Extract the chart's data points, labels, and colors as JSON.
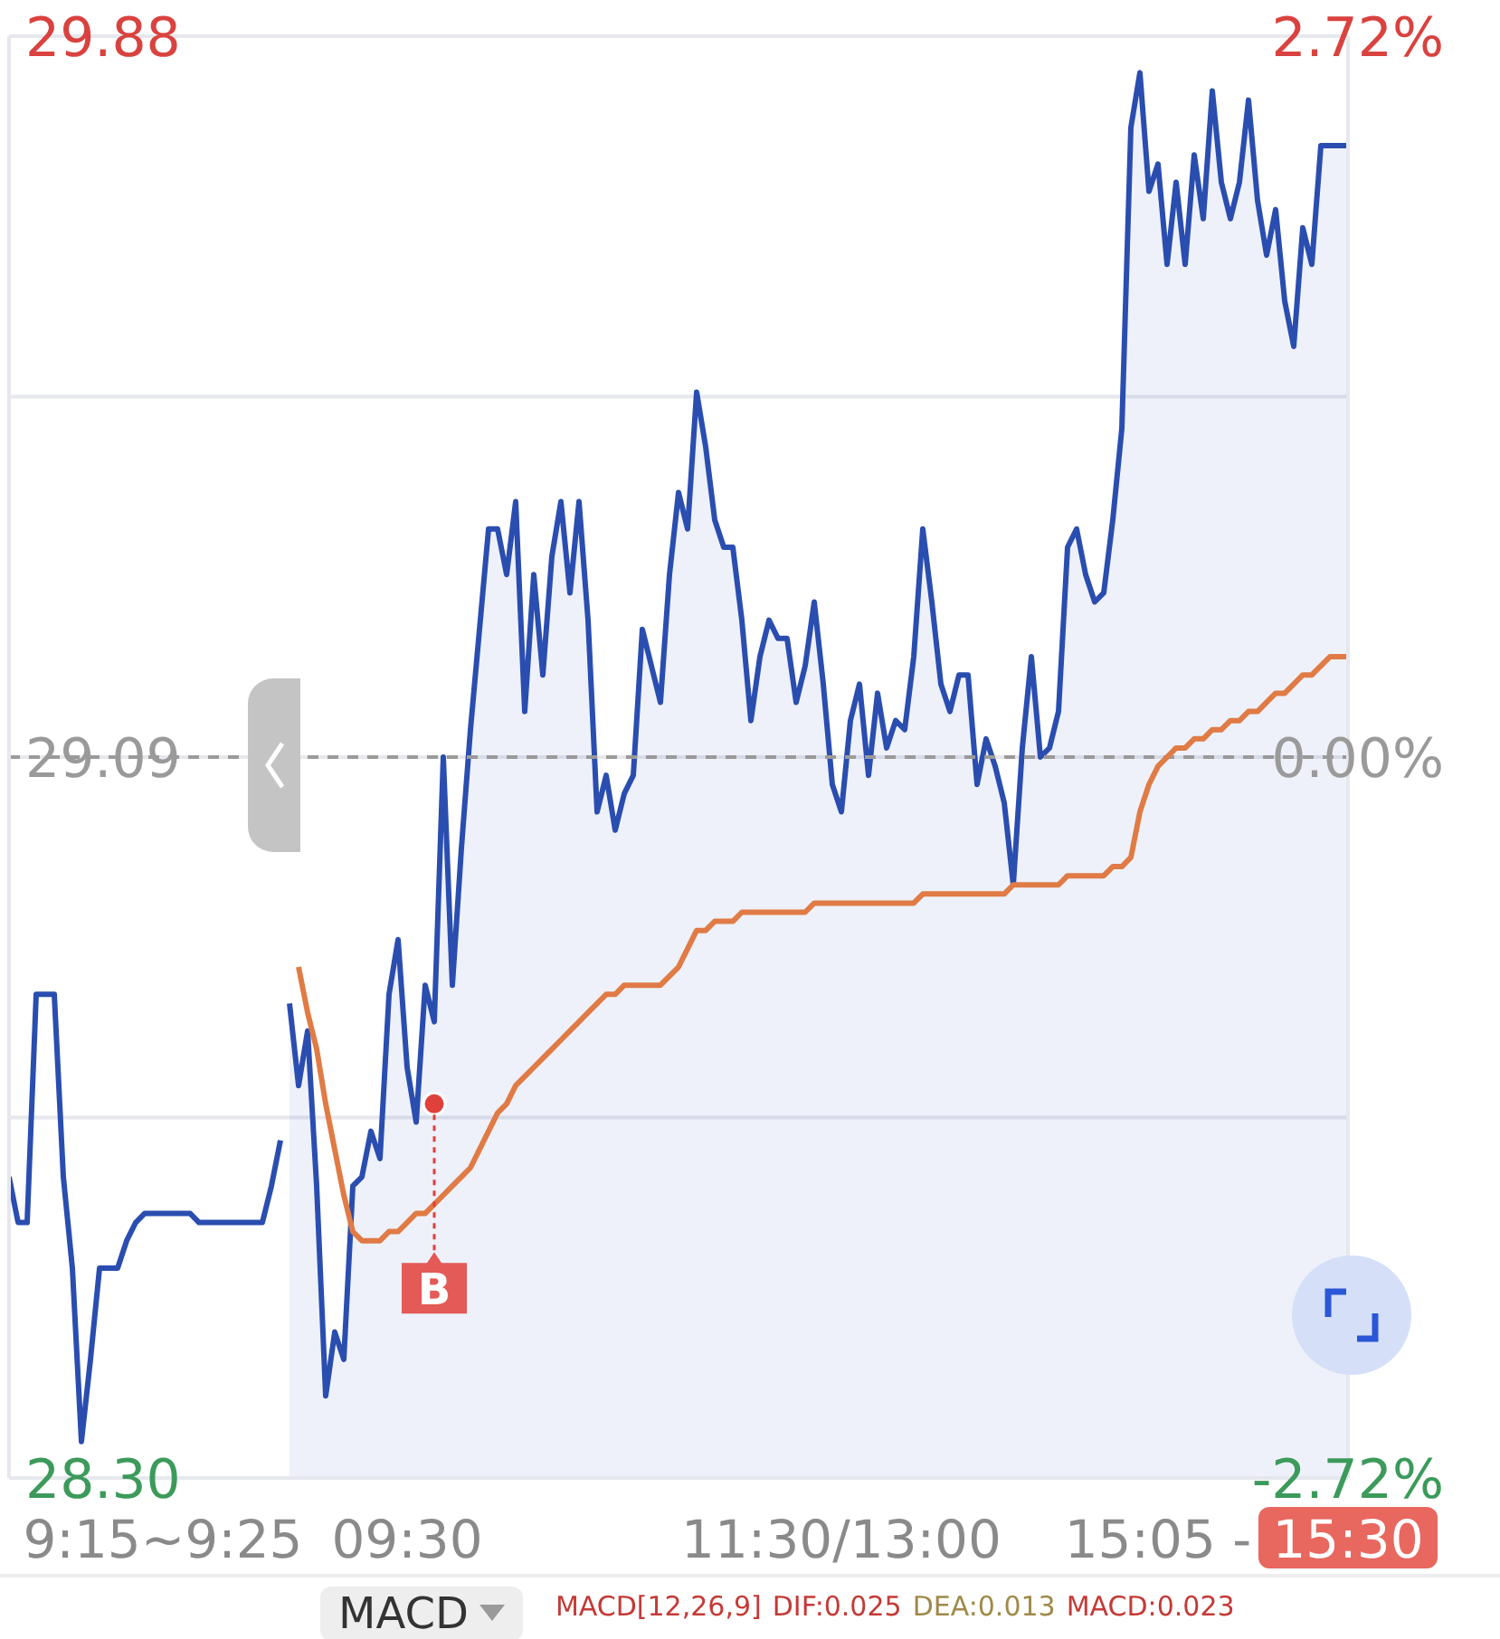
{
  "chart_data": {
    "type": "line",
    "categories": [
      null,
      null,
      null,
      null,
      null,
      null,
      null,
      null,
      null,
      null,
      null,
      null,
      null,
      null,
      null,
      null,
      null,
      "9:15~9:25",
      null,
      null,
      null,
      null,
      null,
      null,
      null,
      null,
      null,
      null,
      null,
      null,
      null,
      null,
      null,
      null,
      null,
      null,
      null,
      null,
      null,
      null,
      null,
      null,
      null,
      null,
      "09:30",
      null,
      null,
      null,
      null,
      null,
      null,
      null,
      null,
      null,
      null,
      null,
      null,
      null,
      null,
      null,
      null,
      null,
      null,
      null,
      null,
      null,
      null,
      null,
      null,
      null,
      null,
      null,
      null,
      null,
      null,
      null,
      null,
      null,
      null,
      null,
      null,
      null,
      null,
      null,
      null,
      null,
      null,
      null,
      null,
      null,
      null,
      null,
      "11:30/13:00",
      null,
      null,
      null,
      null,
      null,
      null,
      null,
      null,
      null,
      null,
      null,
      null,
      null,
      null,
      null,
      null,
      null,
      null,
      null,
      null,
      null,
      null,
      null,
      null,
      null,
      null,
      null,
      null,
      null,
      null,
      null,
      null,
      null,
      null,
      "15:05 -",
      null,
      null,
      null,
      null,
      null,
      null,
      null,
      null,
      null,
      null,
      null,
      null,
      null,
      null,
      null,
      null,
      null,
      null,
      null,
      null,
      "15:30"
    ],
    "ylim": [
      28.3,
      29.88
    ],
    "yticks": [
      {
        "value": 28.3,
        "label": "28.30"
      },
      {
        "value": 28.695,
        "label": null
      },
      {
        "value": 29.09,
        "label": "29.09"
      },
      {
        "value": 29.485,
        "label": null
      },
      {
        "value": 29.88,
        "label": "29.88"
      }
    ],
    "y2lim": [
      -2.72,
      2.72
    ],
    "y2ticks": [
      {
        "value": -2.72,
        "label": "-2.72%"
      },
      {
        "value": 0,
        "label": "0.00%"
      },
      {
        "value": 2.72,
        "label": "2.72%"
      }
    ],
    "grid": "y",
    "series": [
      {
        "type": "line",
        "color": "#2a4db0",
        "values": [
          28.63,
          28.58,
          28.58,
          28.83,
          28.83,
          28.83,
          28.63,
          28.53,
          28.34,
          28.43,
          28.53,
          28.53,
          28.53,
          28.56,
          28.58,
          28.59,
          28.59,
          28.59,
          28.59,
          28.59,
          28.59,
          28.58,
          28.58,
          28.58,
          28.58,
          28.58,
          28.58,
          28.58,
          28.58,
          28.62,
          28.67,
          null,
          null,
          null,
          null,
          null,
          null,
          null,
          null,
          null,
          null,
          null,
          null,
          null,
          null,
          null,
          null,
          null,
          null,
          null,
          null,
          null,
          null,
          null,
          null,
          null,
          null,
          null,
          null,
          null,
          null,
          null,
          null,
          null,
          null,
          null,
          null,
          null,
          null,
          null,
          null,
          null,
          null,
          null,
          null,
          null,
          null,
          null,
          null,
          null,
          null,
          null,
          null,
          null,
          null,
          null,
          null,
          null,
          null,
          null,
          null,
          null,
          null,
          null,
          null,
          null,
          null,
          null,
          null,
          null,
          null,
          null,
          null,
          null,
          null,
          null,
          null,
          null,
          null,
          null,
          null,
          null,
          null,
          null,
          null,
          null,
          null,
          null,
          null,
          null,
          null,
          null,
          null,
          null,
          null,
          null,
          null,
          null,
          null,
          null,
          null,
          null,
          null,
          null,
          null,
          null,
          null,
          null,
          null,
          null,
          null,
          null,
          null,
          null,
          null,
          null,
          null,
          null,
          null
        ]
      },
      {
        "type": "area",
        "color": "#2a4db0",
        "values": [
          null,
          null,
          null,
          null,
          null,
          null,
          null,
          null,
          null,
          null,
          null,
          null,
          null,
          null,
          null,
          null,
          null,
          null,
          null,
          null,
          null,
          null,
          null,
          null,
          null,
          null,
          null,
          null,
          null,
          null,
          null,
          28.82,
          28.73,
          28.79,
          28.62,
          28.39,
          28.46,
          28.43,
          28.62,
          28.63,
          28.68,
          28.65,
          28.83,
          28.89,
          28.75,
          28.69,
          28.84,
          28.8,
          29.09,
          28.84,
          28.99,
          29.12,
          29.23,
          29.34,
          29.34,
          29.29,
          29.37,
          29.14,
          29.29,
          29.18,
          29.31,
          29.37,
          29.27,
          29.37,
          29.24,
          29.03,
          29.07,
          29.01,
          29.05,
          29.07,
          29.23,
          29.19,
          29.15,
          29.29,
          29.38,
          29.34,
          29.49,
          29.43,
          29.35,
          29.32,
          29.32,
          29.24,
          29.13,
          29.2,
          29.24,
          29.22,
          29.22,
          29.15,
          29.19,
          29.26,
          29.17,
          29.06,
          29.03,
          29.13,
          29.17,
          29.07,
          29.16,
          29.1,
          29.13,
          29.12,
          29.2,
          29.34,
          29.26,
          29.17,
          29.14,
          29.18,
          29.18,
          29.06,
          29.11,
          29.08,
          29.04,
          28.95,
          29.1,
          29.2,
          29.09,
          29.1,
          29.14,
          29.32,
          29.34,
          29.29,
          29.26,
          29.27,
          29.35,
          29.45,
          29.78,
          29.84,
          29.71,
          29.74,
          29.63,
          29.72,
          29.63,
          29.75,
          29.68,
          29.82,
          29.72,
          29.68,
          29.72,
          29.81,
          29.7,
          29.64,
          29.69,
          29.59,
          29.54,
          29.67,
          29.63,
          29.76,
          29.76,
          29.76,
          29.76
        ]
      },
      {
        "type": "line",
        "color": "#e07b45",
        "values": [
          null,
          null,
          null,
          null,
          null,
          null,
          null,
          null,
          null,
          null,
          null,
          null,
          null,
          null,
          null,
          null,
          null,
          null,
          null,
          null,
          null,
          null,
          null,
          null,
          null,
          null,
          null,
          null,
          null,
          null,
          null,
          null,
          28.86,
          28.81,
          28.77,
          28.71,
          28.66,
          28.61,
          28.57,
          28.56,
          28.56,
          28.56,
          28.57,
          28.57,
          28.58,
          28.59,
          28.59,
          28.6,
          28.61,
          28.62,
          28.63,
          28.64,
          28.66,
          28.68,
          28.7,
          28.71,
          28.73,
          28.74,
          28.75,
          28.76,
          28.77,
          28.78,
          28.79,
          28.8,
          28.81,
          28.82,
          28.83,
          28.83,
          28.84,
          28.84,
          28.84,
          28.84,
          28.84,
          28.85,
          28.86,
          28.88,
          28.9,
          28.9,
          28.91,
          28.91,
          28.91,
          28.92,
          28.92,
          28.92,
          28.92,
          28.92,
          28.92,
          28.92,
          28.92,
          28.93,
          28.93,
          28.93,
          28.93,
          28.93,
          28.93,
          28.93,
          28.93,
          28.93,
          28.93,
          28.93,
          28.93,
          28.94,
          28.94,
          28.94,
          28.94,
          28.94,
          28.94,
          28.94,
          28.94,
          28.94,
          28.94,
          28.95,
          28.95,
          28.95,
          28.95,
          28.95,
          28.95,
          28.96,
          28.96,
          28.96,
          28.96,
          28.96,
          28.97,
          28.97,
          28.98,
          29.03,
          29.06,
          29.08,
          29.09,
          29.1,
          29.1,
          29.11,
          29.11,
          29.12,
          29.12,
          29.13,
          29.13,
          29.14,
          29.14,
          29.15,
          29.16,
          29.16,
          29.17,
          29.18,
          29.18,
          29.19,
          29.2,
          29.2,
          29.2
        ]
      },
      {
        "type": "scatter",
        "color": "#e0403a",
        "marker": "circle",
        "value_labels": [
          null,
          null,
          null,
          null,
          null,
          null,
          null,
          null,
          null,
          null,
          null,
          null,
          null,
          null,
          null,
          null,
          null,
          null,
          null,
          null,
          null,
          null,
          null,
          null,
          null,
          null,
          null,
          null,
          null,
          null,
          null,
          null,
          null,
          null,
          null,
          null,
          null,
          null,
          null,
          null,
          null,
          null,
          null,
          null,
          null,
          null,
          null,
          "B",
          null,
          null,
          null,
          null,
          null,
          null,
          null,
          null,
          null,
          null,
          null,
          null,
          null,
          null,
          null,
          null,
          null,
          null,
          null,
          null,
          null,
          null,
          null,
          null,
          null,
          null,
          null,
          null,
          null,
          null,
          null,
          null,
          null,
          null,
          null,
          null,
          null,
          null,
          null,
          null,
          null,
          null,
          null,
          null,
          null,
          null,
          null,
          null,
          null,
          null,
          null,
          null,
          null,
          null,
          null,
          null,
          null,
          null,
          null,
          null,
          null,
          null,
          null,
          null,
          null,
          null,
          null,
          null,
          null,
          null,
          null,
          null,
          null,
          null,
          null,
          null,
          null,
          null,
          null,
          null,
          null,
          null,
          null,
          null,
          null,
          null,
          null,
          null,
          null,
          null,
          null,
          null,
          null,
          null,
          null,
          null,
          null,
          null,
          null,
          null,
          null
        ],
        "values": [
          null,
          null,
          null,
          null,
          null,
          null,
          null,
          null,
          null,
          null,
          null,
          null,
          null,
          null,
          null,
          null,
          null,
          null,
          null,
          null,
          null,
          null,
          null,
          null,
          null,
          null,
          null,
          null,
          null,
          null,
          null,
          null,
          null,
          null,
          null,
          null,
          null,
          null,
          null,
          null,
          null,
          null,
          null,
          null,
          null,
          null,
          null,
          28.71,
          null,
          null,
          null,
          null,
          null,
          null,
          null,
          null,
          null,
          null,
          null,
          null,
          null,
          null,
          null,
          null,
          null,
          null,
          null,
          null,
          null,
          null,
          null,
          null,
          null,
          null,
          null,
          null,
          null,
          null,
          null,
          null,
          null,
          null,
          null,
          null,
          null,
          null,
          null,
          null,
          null,
          null,
          null,
          null,
          null,
          null,
          null,
          null,
          null,
          null,
          null,
          null,
          null,
          null,
          null,
          null,
          null,
          null,
          null,
          null,
          null,
          null,
          null,
          null,
          null,
          null,
          null,
          null,
          null,
          null,
          null,
          null,
          null,
          null,
          null,
          null,
          null,
          null,
          null,
          null,
          null,
          null,
          null,
          null,
          null,
          null,
          null,
          null,
          null,
          null,
          null,
          null,
          null,
          null,
          null,
          null,
          null,
          null,
          null,
          null,
          null
        ]
      }
    ],
    "ref_lines": [
      {
        "axis": "y",
        "value": 29.09,
        "color": "#9a9a9a",
        "line_style": "dashed"
      }
    ],
    "annotations": [
      "MACD",
      "MACD[12,26,9]",
      "DIF:0.025",
      "DEA:0.013",
      "MACD:0.023"
    ]
  }
}
